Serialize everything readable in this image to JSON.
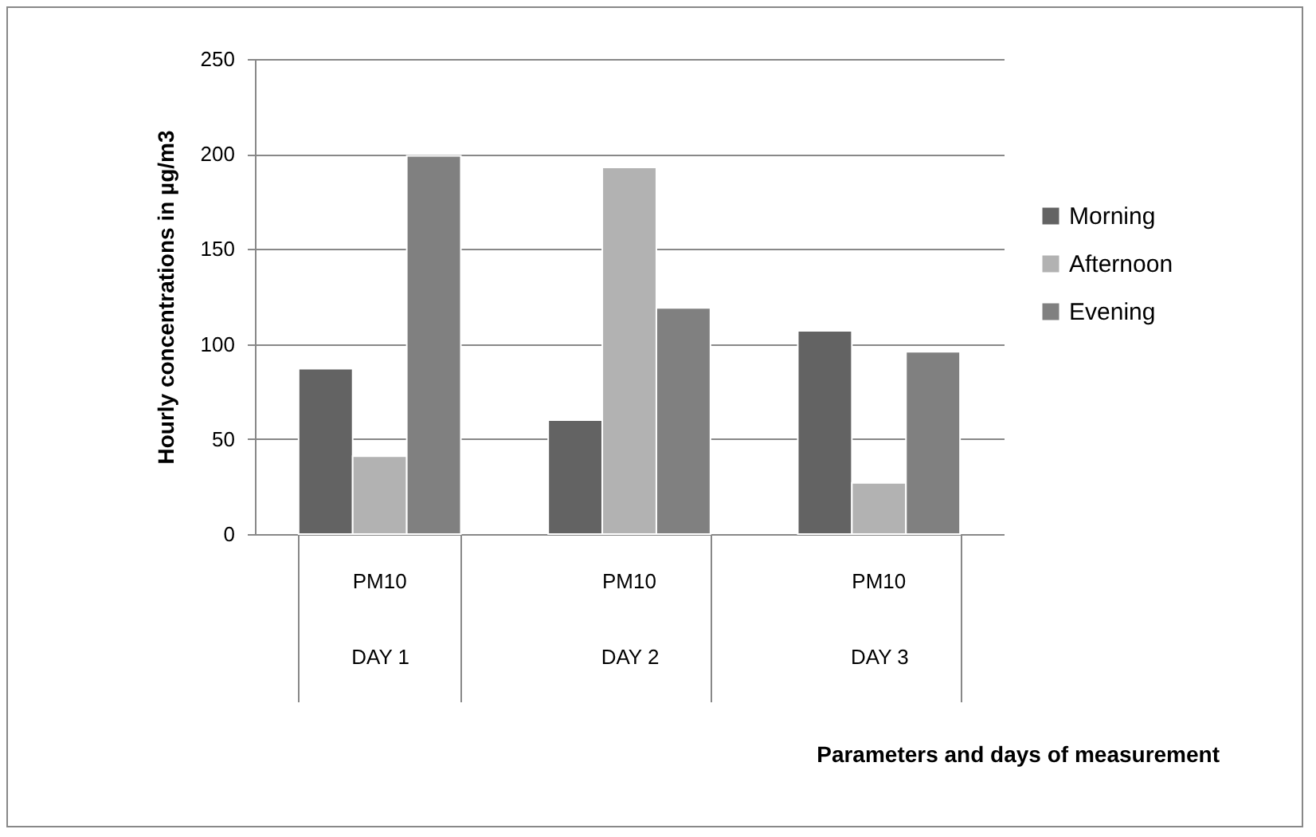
{
  "chart_data": {
    "type": "bar",
    "xlabel": "Parameters and days of measurement",
    "ylabel": "Hourly concentrations in µg/m3",
    "categories": [
      "DAY 1",
      "DAY 2",
      "DAY 3"
    ],
    "series": [
      {
        "name": "Morning",
        "color": "#636363",
        "values": [
          87,
          60,
          107
        ]
      },
      {
        "name": "Afternoon",
        "color": "#b2b2b2",
        "values": [
          41,
          193,
          27
        ]
      },
      {
        "name": "Evening",
        "color": "#808080",
        "values": [
          199,
          119,
          96
        ]
      }
    ],
    "annotations": [
      "PM10",
      "PM10",
      "PM10"
    ],
    "ylim": [
      0,
      250
    ],
    "yticks": [
      0,
      50,
      100,
      150,
      200,
      250
    ],
    "grid": "y",
    "legend": "right"
  }
}
